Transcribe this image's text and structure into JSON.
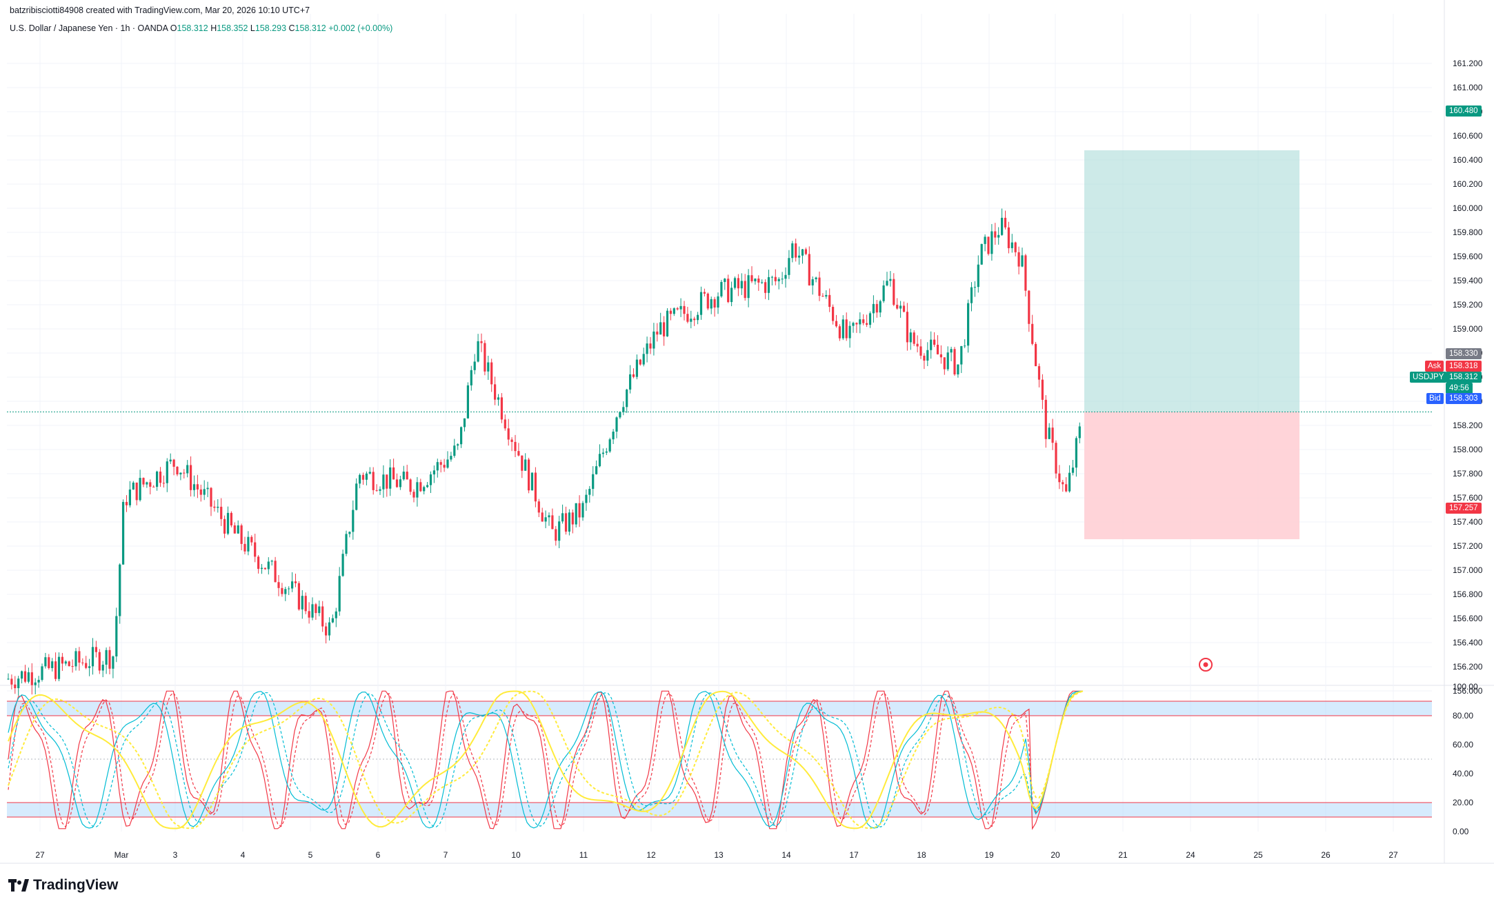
{
  "header": {
    "credit": "batzribisciotti84908 created with TradingView.com, Mar 20, 2026 10:10 UTC+7",
    "symbol": "U.S. Dollar / Japanese Yen · 1h · OANDA",
    "o_label": "O",
    "o": "158.312",
    "h_label": "H",
    "h": "158.352",
    "l_label": "L",
    "l": "158.293",
    "c_label": "C",
    "c": "158.312",
    "change": "+0.002 (+0.00%)"
  },
  "price_tags": {
    "target": "160.480",
    "high_marker": "158.330",
    "ask_label": "Ask",
    "ask": "158.318",
    "symbol_label": "USDJPY",
    "last": "158.312",
    "countdown": "49:56",
    "bid_label": "Bid",
    "bid": "158.303",
    "stop": "157.257"
  },
  "colors": {
    "up": "#089981",
    "down": "#F23645",
    "grid": "#F0F3FA",
    "stoch_k": "#F23645",
    "stoch_d": "#00BCD4",
    "stoch_slow": "#FFEB3B",
    "band": "#BBDEFB",
    "target_zone": "#B2DFDB",
    "stop_zone": "#FFCDD2",
    "bid": "#2962FF"
  },
  "brand": "TradingView",
  "chart_data": {
    "type": "candlestick",
    "title": "U.S. Dollar / Japanese Yen · 1h · OANDA",
    "price_axis": {
      "ylim": [
        155.9,
        161.3
      ],
      "ticks": [
        "161.200",
        "161.000",
        "160.800",
        "160.600",
        "160.400",
        "160.200",
        "160.000",
        "159.800",
        "159.600",
        "159.400",
        "159.200",
        "159.000",
        "158.800",
        "158.600",
        "158.400",
        "158.200",
        "158.000",
        "157.800",
        "157.600",
        "157.400",
        "157.200",
        "157.000",
        "156.800",
        "156.600",
        "156.400",
        "156.200",
        "156.000"
      ]
    },
    "x_axis": {
      "tick_labels": [
        "27",
        "Mar",
        "3",
        "4",
        "5",
        "6",
        "7",
        "10",
        "11",
        "12",
        "13",
        "14",
        "17",
        "18",
        "19",
        "20",
        "21",
        "24",
        "25",
        "26",
        "27"
      ]
    },
    "price_path_keypoints": [
      {
        "date": "Feb 26 18:00",
        "price": 156.1
      },
      {
        "date": "Feb 27 18:00",
        "price": 156.3
      },
      {
        "date": "Mar 2 18:00",
        "price": 157.6
      },
      {
        "date": "Mar 3 12:00",
        "price": 157.9
      },
      {
        "date": "Mar 4 12:00",
        "price": 157.3
      },
      {
        "date": "Mar 5 06:00",
        "price": 156.5
      },
      {
        "date": "Mar 5 18:00",
        "price": 157.8
      },
      {
        "date": "Mar 6 12:00",
        "price": 157.7
      },
      {
        "date": "Mar 6 23:00",
        "price": 158.0
      },
      {
        "date": "Mar 9 04:00",
        "price": 158.9
      },
      {
        "date": "Mar 9 18:00",
        "price": 158.0
      },
      {
        "date": "Mar 10 12:00",
        "price": 157.3
      },
      {
        "date": "Mar 11 06:00",
        "price": 157.5
      },
      {
        "date": "Mar 11 18:00",
        "price": 158.4
      },
      {
        "date": "Mar 12 12:00",
        "price": 159.0
      },
      {
        "date": "Mar 13 06:00",
        "price": 159.3
      },
      {
        "date": "Mar 13 18:00",
        "price": 159.4
      },
      {
        "date": "Mar 14 02:00",
        "price": 159.7
      },
      {
        "date": "Mar 16 12:00",
        "price": 158.9
      },
      {
        "date": "Mar 17 06:00",
        "price": 159.4
      },
      {
        "date": "Mar 17 18:00",
        "price": 158.9
      },
      {
        "date": "Mar 18 12:00",
        "price": 158.7
      },
      {
        "date": "Mar 18 20:00",
        "price": 159.6
      },
      {
        "date": "Mar 19 04:00",
        "price": 159.85
      },
      {
        "date": "Mar 19 12:00",
        "price": 159.6
      },
      {
        "date": "Mar 19 20:00",
        "price": 158.2
      },
      {
        "date": "Mar 20 04:00",
        "price": 157.6
      },
      {
        "date": "Mar 20 10:00",
        "price": 158.31
      }
    ],
    "position": {
      "type": "long",
      "entry": 158.312,
      "target": 160.48,
      "stop": 157.257,
      "from": "Mar 20 10:00",
      "to": "Mar 25 16:00"
    },
    "stochastic": {
      "ylim": [
        0,
        100
      ],
      "ticks": [
        "100.00",
        "80.00",
        "60.00",
        "40.00",
        "20.00",
        "0.00"
      ],
      "overbought_band": [
        80,
        90
      ],
      "oversold_band": [
        10,
        20
      ],
      "series": [
        {
          "role": "fast_k",
          "color": "#F23645"
        },
        {
          "role": "fast_d",
          "color": "#F23645",
          "dashed": true
        },
        {
          "role": "mid_k",
          "color": "#00BCD4"
        },
        {
          "role": "mid_d",
          "color": "#00BCD4",
          "dashed": true
        },
        {
          "role": "slow_k",
          "color": "#FFEB3B"
        },
        {
          "role": "slow_d",
          "color": "#FFEB3B",
          "dashed": true
        }
      ]
    }
  }
}
